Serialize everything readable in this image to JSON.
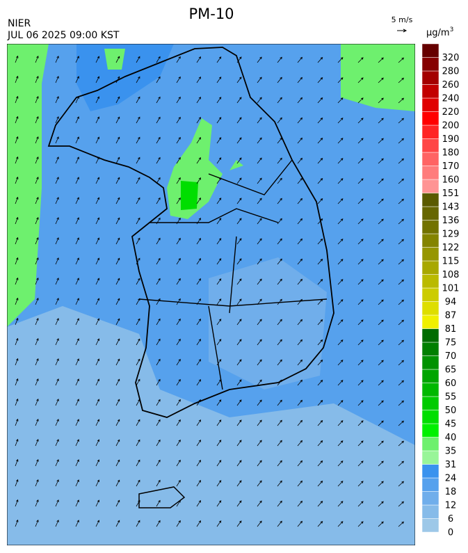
{
  "header": {
    "title": "PM-10",
    "agency": "NIER",
    "timestamp": "JUL 06 2025 09:00 KST",
    "wind_scale": "5 m/s",
    "unit": {
      "base": "μg/m",
      "sup": "3"
    }
  },
  "colorbar": {
    "levels": [
      0,
      6,
      12,
      18,
      24,
      31,
      35,
      40,
      45,
      50,
      55,
      60,
      65,
      70,
      75,
      81,
      87,
      94,
      101,
      108,
      115,
      122,
      129,
      136,
      143,
      151,
      160,
      170,
      180,
      190,
      200,
      220,
      240,
      260,
      280,
      320
    ],
    "colors": [
      "#9dc8e8",
      "#86bbe9",
      "#70aeeb",
      "#56a1ed",
      "#3a92ee",
      "#99f599",
      "#6ef06e",
      "#00f000",
      "#00de00",
      "#00cb00",
      "#00b800",
      "#00a500",
      "#009200",
      "#007f00",
      "#006c00",
      "#f0f000",
      "#dede00",
      "#cccc00",
      "#baba00",
      "#a8a800",
      "#969600",
      "#848400",
      "#727200",
      "#666600",
      "#5a5a00",
      "#ff9494",
      "#ff7c7c",
      "#ff6464",
      "#ff4646",
      "#ff2424",
      "#ff0000",
      "#e00000",
      "#c20000",
      "#a40000",
      "#860000",
      "#660000"
    ]
  }
}
